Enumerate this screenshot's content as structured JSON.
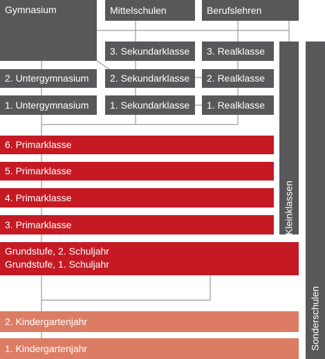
{
  "top": {
    "gymnasium": "Gymnasium",
    "mittelschulen": "Mittelschulen",
    "berufslehren": "Berufslehren"
  },
  "sekundar": {
    "third": "3. Sekundarklasse",
    "second": "2. Sekundarklasse",
    "first": "1. Sekundarklasse"
  },
  "real": {
    "third": "3. Realklasse",
    "second": "2. Realklasse",
    "first": "1. Realklasse"
  },
  "untergymnasium": {
    "second": "2. Untergymnasium",
    "first": "1. Untergymnasium"
  },
  "primar": {
    "sixth": "6. Primarklasse",
    "fifth": "5. Primarklasse",
    "fourth": "4. Primarklasse",
    "third": "3. Primarklasse"
  },
  "grundstufe": {
    "line2": "Grundstufe, 2. Schuljahr",
    "line1": "Grundstufe, 1. Schuljahr"
  },
  "kindergarten": {
    "second": "2. Kindergartenjahr",
    "first": "1. Kindergartenjahr"
  },
  "side": {
    "kleinklassen": "Kleinklassen",
    "sonderschulen": "Sonderschulen"
  },
  "colors": {
    "dark": "#58585a",
    "red": "#c51a24",
    "salmon": "#dd7c64",
    "connector": "#8a8a8c"
  }
}
